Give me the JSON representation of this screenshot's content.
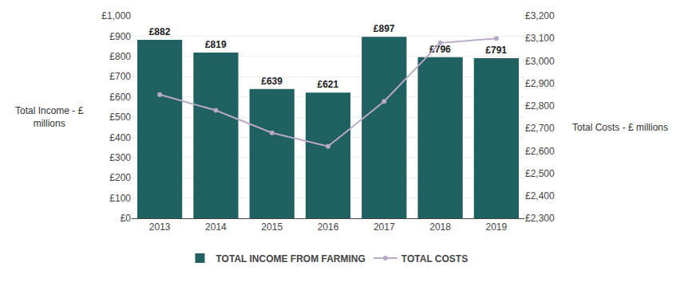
{
  "chart_data": {
    "type": "bar",
    "x": [
      2013,
      2014,
      2015,
      2016,
      2017,
      2018,
      2019
    ],
    "xlim": [
      2012.5,
      2019.5
    ],
    "xticks": [
      2013,
      2014,
      2015,
      2016,
      2017,
      2018,
      2019
    ],
    "ylabel": "Total Income - £\nmillions",
    "y2label": "Total Costs - £ millions",
    "ylim": [
      0,
      1000
    ],
    "yticks": [
      {
        "value": 0,
        "label": "£0"
      },
      {
        "value": 100,
        "label": "£100"
      },
      {
        "value": 200,
        "label": "£200"
      },
      {
        "value": 300,
        "label": "£300"
      },
      {
        "value": 400,
        "label": "£400"
      },
      {
        "value": 500,
        "label": "£500"
      },
      {
        "value": 600,
        "label": "£600"
      },
      {
        "value": 700,
        "label": "£700"
      },
      {
        "value": 800,
        "label": "£800"
      },
      {
        "value": 900,
        "label": "£900"
      },
      {
        "value": 1000,
        "label": "£1,000"
      }
    ],
    "y2lim": [
      2300,
      3200
    ],
    "y2ticks": [
      {
        "value": 2300,
        "label": "£2,300"
      },
      {
        "value": 2400,
        "label": "£2,400"
      },
      {
        "value": 2500,
        "label": "£2,500"
      },
      {
        "value": 2600,
        "label": "£2,600"
      },
      {
        "value": 2700,
        "label": "£2,700"
      },
      {
        "value": 2800,
        "label": "£2,800"
      },
      {
        "value": 2900,
        "label": "£2,900"
      },
      {
        "value": 3000,
        "label": "£3,000"
      },
      {
        "value": 3100,
        "label": "£3,100"
      },
      {
        "value": 3200,
        "label": "£3,200"
      }
    ],
    "grid": true,
    "legend": "bottom",
    "data_labels": true,
    "series": [
      {
        "name": "TOTAL INCOME FROM FARMING",
        "type": "bar",
        "color": "#1f6060",
        "values": [
          882,
          819,
          639,
          621,
          897,
          796,
          791
        ],
        "value_labels": [
          "£882",
          "£819",
          "£639",
          "£621",
          "£897",
          "£796",
          "£791"
        ]
      },
      {
        "name": "TOTAL COSTS",
        "type": "line",
        "color": "#b8a8c8",
        "axis": "y2",
        "marker": "circle",
        "values": [
          2850,
          2780,
          2680,
          2620,
          2820,
          3080,
          3100
        ]
      }
    ]
  }
}
